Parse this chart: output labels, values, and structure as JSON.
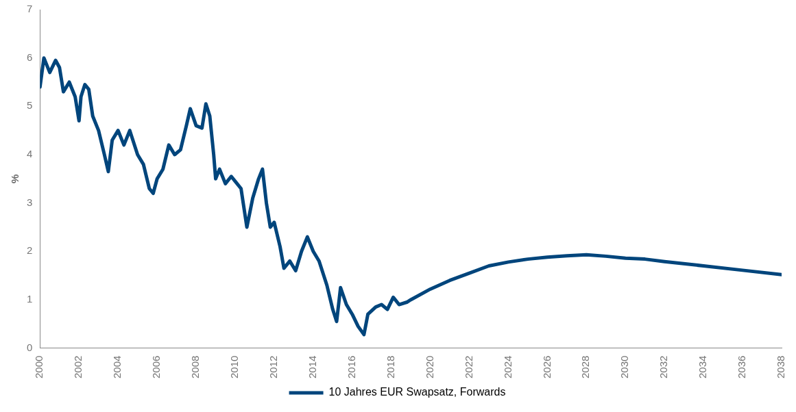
{
  "chart_data": {
    "type": "line",
    "ylabel": "%",
    "legend": "bottom",
    "grid": false,
    "marker": "none",
    "line_style": "solid",
    "xlim": [
      2000,
      2038
    ],
    "xticks": [
      2000,
      2002,
      2004,
      2006,
      2008,
      2010,
      2012,
      2014,
      2016,
      2018,
      2020,
      2022,
      2024,
      2026,
      2028,
      2030,
      2032,
      2034,
      2036,
      2038
    ],
    "ylim": [
      0,
      7
    ],
    "yticks": [
      0,
      1,
      2,
      3,
      4,
      5,
      6,
      7
    ],
    "series": [
      {
        "name": "10 Jahres EUR Swapsatz, Forwards",
        "color": "#00457c",
        "x": [
          2000.0,
          2000.2,
          2000.5,
          2000.8,
          2001.0,
          2001.2,
          2001.5,
          2001.8,
          2002.0,
          2002.1,
          2002.3,
          2002.5,
          2002.7,
          2003.0,
          2003.3,
          2003.5,
          2003.7,
          2004.0,
          2004.3,
          2004.6,
          2005.0,
          2005.3,
          2005.6,
          2005.8,
          2006.0,
          2006.3,
          2006.6,
          2006.9,
          2007.2,
          2007.5,
          2007.7,
          2008.0,
          2008.3,
          2008.5,
          2008.7,
          2008.9,
          2009.0,
          2009.2,
          2009.5,
          2009.8,
          2010.0,
          2010.3,
          2010.6,
          2010.9,
          2011.2,
          2011.4,
          2011.6,
          2011.8,
          2012.0,
          2012.3,
          2012.5,
          2012.8,
          2013.1,
          2013.4,
          2013.7,
          2014.0,
          2014.3,
          2014.7,
          2015.0,
          2015.2,
          2015.4,
          2015.7,
          2016.0,
          2016.3,
          2016.6,
          2016.8,
          2017.2,
          2017.5,
          2017.8,
          2018.1,
          2018.4,
          2018.8,
          2019.0,
          2020,
          2021,
          2022,
          2023,
          2024,
          2025,
          2026,
          2027,
          2028,
          2029,
          2030,
          2031,
          2032,
          2034,
          2036,
          2038
        ],
        "values": [
          5.4,
          6.0,
          5.7,
          5.95,
          5.8,
          5.3,
          5.5,
          5.2,
          4.7,
          5.2,
          5.45,
          5.35,
          4.8,
          4.5,
          4.0,
          3.65,
          4.3,
          4.5,
          4.2,
          4.5,
          4.0,
          3.8,
          3.3,
          3.2,
          3.5,
          3.7,
          4.2,
          4.0,
          4.1,
          4.6,
          4.95,
          4.6,
          4.55,
          5.05,
          4.8,
          4.0,
          3.5,
          3.7,
          3.4,
          3.55,
          3.45,
          3.3,
          2.5,
          3.1,
          3.5,
          3.7,
          3.0,
          2.5,
          2.6,
          2.1,
          1.65,
          1.8,
          1.6,
          2.0,
          2.3,
          2.0,
          1.8,
          1.3,
          0.8,
          0.55,
          1.25,
          0.9,
          0.7,
          0.45,
          0.28,
          0.7,
          0.85,
          0.9,
          0.8,
          1.05,
          0.9,
          0.95,
          1.0,
          1.22,
          1.4,
          1.55,
          1.7,
          1.78,
          1.84,
          1.88,
          1.91,
          1.93,
          1.9,
          1.86,
          1.84,
          1.79,
          1.7,
          1.61,
          1.52
        ]
      }
    ]
  }
}
